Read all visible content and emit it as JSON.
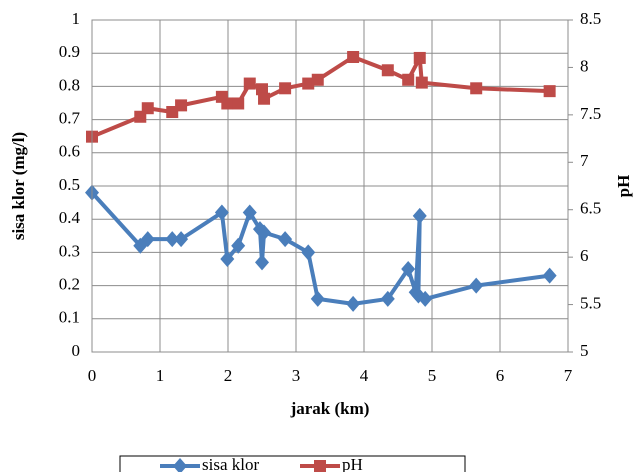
{
  "chart_data": {
    "type": "line",
    "x_label": "jarak (km)",
    "y_label": "sisa klor (mg/l)",
    "y2_label": "pH",
    "xlim": [
      0,
      7
    ],
    "xticks": [
      0,
      1,
      2,
      3,
      4,
      5,
      6,
      7
    ],
    "ylim": [
      0,
      1
    ],
    "yticks": [
      0,
      0.1,
      0.2,
      0.3,
      0.4,
      0.5,
      0.6,
      0.7,
      0.8,
      0.9,
      1
    ],
    "y2lim": [
      5,
      8.5
    ],
    "y2ticks": [
      5,
      5.5,
      6,
      6.5,
      7,
      7.5,
      8,
      8.5
    ],
    "grid": true,
    "legend": "bottom",
    "series": [
      {
        "name": "sisa klor",
        "color": "#4a7ebb",
        "marker": "diamond",
        "x": [
          0,
          0.71,
          0.82,
          1.18,
          1.31,
          1.91,
          1.99,
          2.15,
          2.32,
          2.47,
          2.5,
          2.53,
          2.84,
          3.18,
          3.32,
          3.84,
          4.35,
          4.65,
          4.76,
          4.82,
          4.8,
          4.9,
          5.65,
          6.73
        ],
        "values": [
          0.48,
          0.32,
          0.34,
          0.34,
          0.34,
          0.42,
          0.28,
          0.32,
          0.42,
          0.37,
          0.27,
          0.36,
          0.34,
          0.3,
          0.16,
          0.145,
          0.16,
          0.25,
          0.18,
          0.41,
          0.17,
          0.16,
          0.2,
          0.23
        ]
      },
      {
        "name": "pH",
        "color": "#be4b48",
        "marker": "square",
        "axis": "y2",
        "x": [
          0,
          0.71,
          0.82,
          1.18,
          1.31,
          1.91,
          1.99,
          2.15,
          2.32,
          2.5,
          2.53,
          2.84,
          3.18,
          3.32,
          3.84,
          4.35,
          4.65,
          4.82,
          4.85,
          5.65,
          6.73
        ],
        "values": [
          7.27,
          7.48,
          7.57,
          7.53,
          7.6,
          7.69,
          7.62,
          7.62,
          7.83,
          7.77,
          7.67,
          7.78,
          7.83,
          7.87,
          8.11,
          7.97,
          7.87,
          8.1,
          7.84,
          7.78,
          7.75
        ]
      }
    ]
  }
}
